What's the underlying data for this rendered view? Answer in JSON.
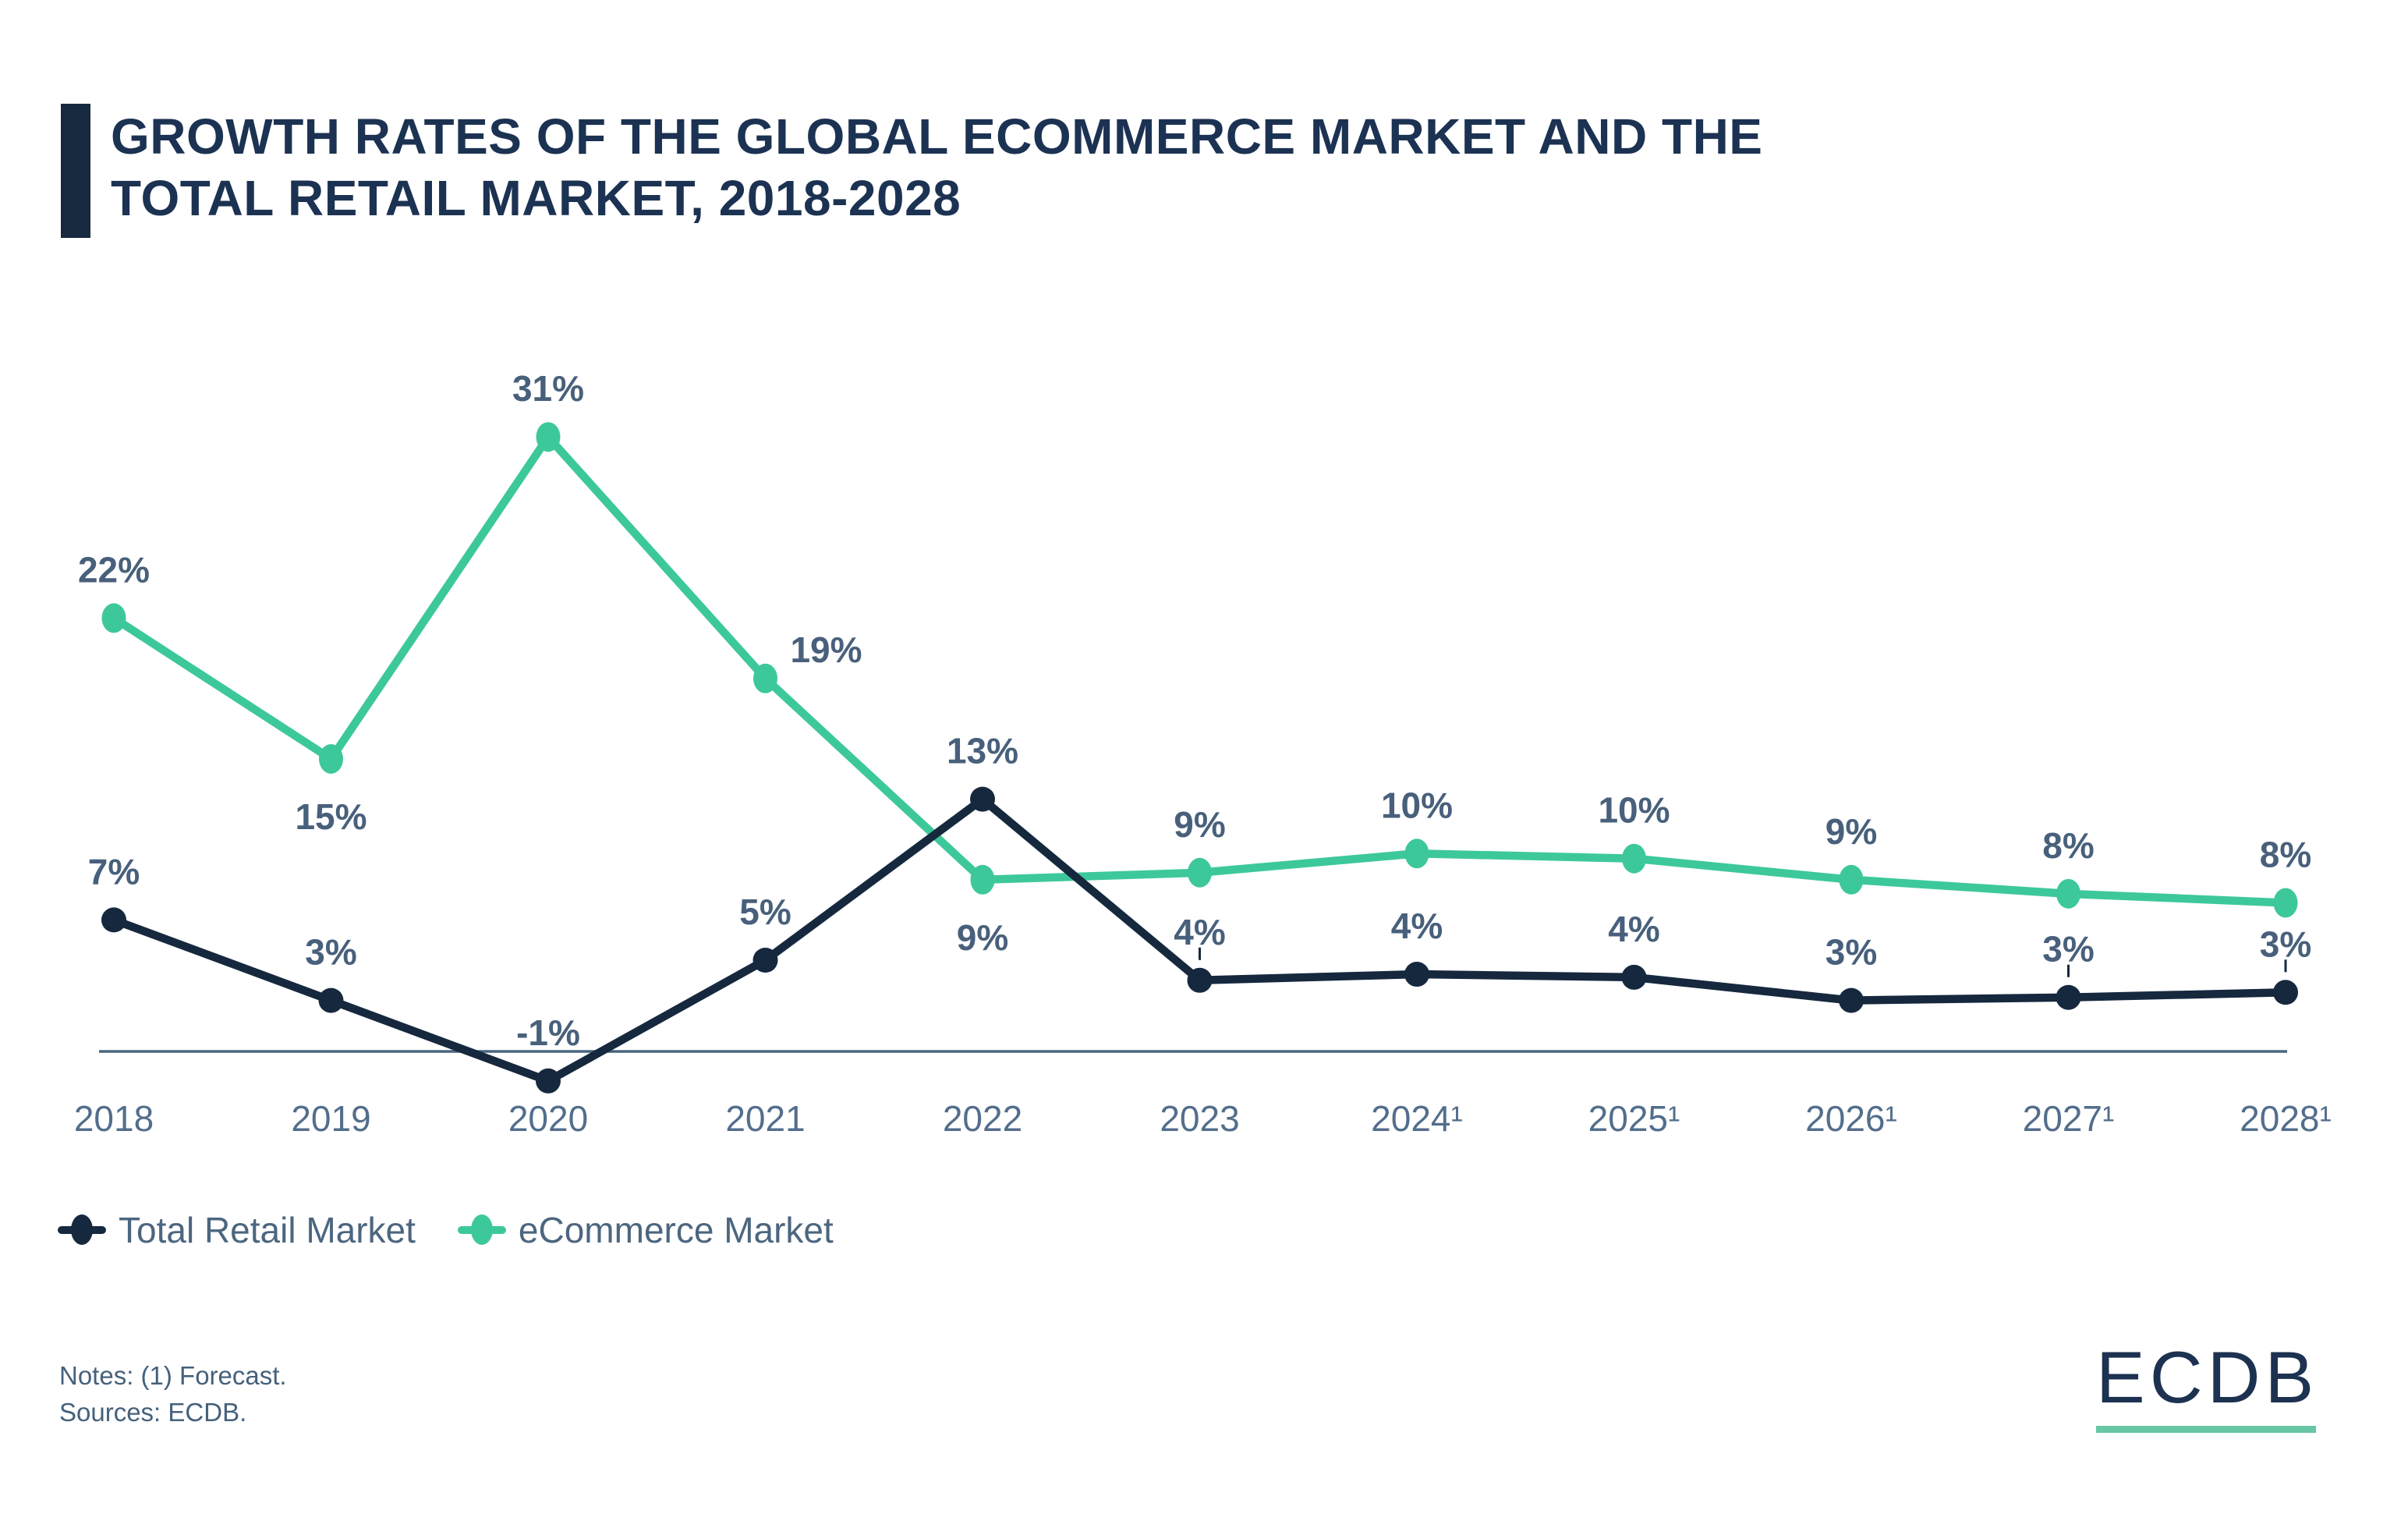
{
  "header": {
    "title_lines": [
      "GROWTH RATES OF THE GLOBAL ECOMMERCE MARKET AND THE",
      "TOTAL RETAIL MARKET, 2018-2028"
    ]
  },
  "chart_data": {
    "type": "line",
    "title": "Growth rates of the global ecommerce market and the total retail market, 2018-2028",
    "categories": [
      "2018",
      "2019",
      "2020",
      "2021",
      "2022",
      "2023",
      "2024¹",
      "2025¹",
      "2026¹",
      "2027¹",
      "2028¹"
    ],
    "series": [
      {
        "name": "Total Retail Market",
        "color": "#16283E",
        "values": [
          7,
          3,
          -1,
          5,
          13,
          4,
          4,
          4,
          3,
          3,
          3
        ],
        "labels": [
          "7%",
          "3%",
          "-1%",
          "5%",
          "13%",
          "4%",
          "4%",
          "4%",
          "3%",
          "3%",
          "3%"
        ],
        "plot_values": [
          7,
          3,
          -1,
          5,
          13,
          4,
          4.3,
          4.15,
          3,
          3.15,
          3.4
        ],
        "label_below": [],
        "leader_ticks": [
          5,
          9,
          10
        ]
      },
      {
        "name": "eCommerce Market",
        "color": "#3DC89B",
        "values": [
          22,
          15,
          31,
          19,
          9,
          9,
          10,
          10,
          9,
          8,
          8
        ],
        "labels": [
          "22%",
          "15%",
          "31%",
          "19%",
          "9%",
          "9%",
          "10%",
          "10%",
          "9%",
          "8%",
          "8%"
        ],
        "plot_values": [
          22,
          15,
          31,
          19,
          9,
          9.35,
          10.3,
          10.05,
          9,
          8.3,
          7.85
        ],
        "label_below": [
          1,
          4
        ],
        "label_shift": {
          "3": [
            78,
            25
          ]
        }
      }
    ],
    "xlabel": "",
    "ylabel": "",
    "ylim": [
      -2,
      33
    ],
    "grid": false,
    "baseline_axis_pct": 0,
    "legend_position": "bottom-left",
    "unit": "%",
    "forecast_note_marker": "¹"
  },
  "legend": {
    "items": [
      {
        "label": "Total Retail Market"
      },
      {
        "label": "eCommerce Market"
      }
    ]
  },
  "notes": {
    "line1": "Notes: (1) Forecast.",
    "line2": "Sources: ECDB."
  },
  "logo": {
    "text": "ECDB",
    "underline_color": "#67C7A4"
  }
}
